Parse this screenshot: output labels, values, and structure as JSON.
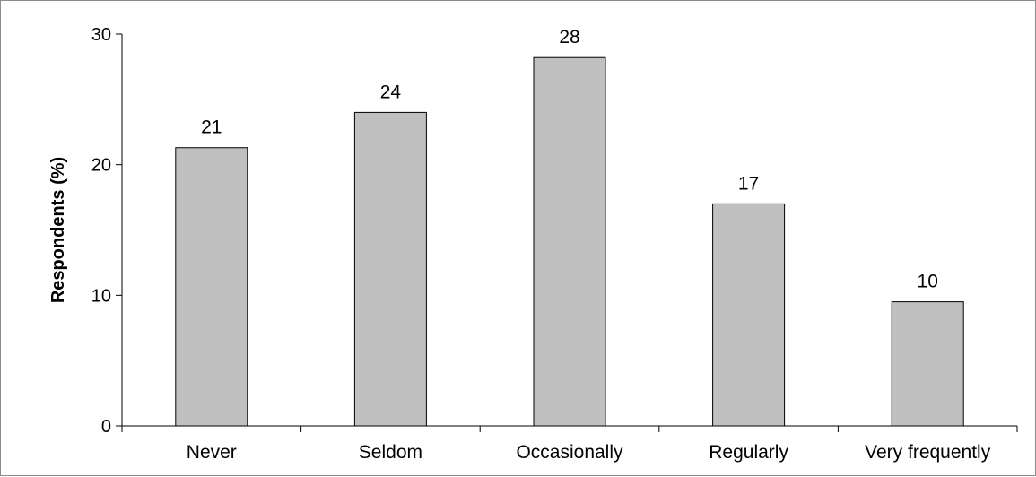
{
  "chart_data": {
    "type": "bar",
    "title": "",
    "xlabel": "",
    "ylabel": "Respondents (%)",
    "categories": [
      "Never",
      "Seldom",
      "Occasionally",
      "Regularly",
      "Very frequently"
    ],
    "values": [
      21.3,
      24.0,
      28.2,
      17.0,
      9.5
    ],
    "data_labels": [
      "21",
      "24",
      "28",
      "17",
      "10"
    ],
    "ylim": [
      0,
      30
    ],
    "yticks": [
      0,
      10,
      20,
      30
    ],
    "ytick_labels": [
      "0",
      "10",
      "20",
      "30"
    ],
    "grid": false,
    "legend": "none",
    "bar_color": "#c0c0c0",
    "bar_edge_color": "#000000"
  }
}
